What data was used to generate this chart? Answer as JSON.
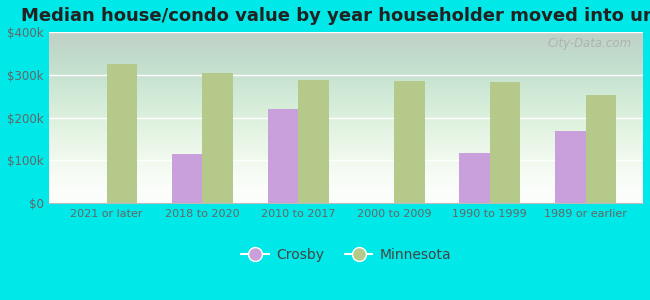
{
  "title": "Median house/condo value by year householder moved into unit",
  "categories": [
    "2021 or later",
    "2018 to 2020",
    "2010 to 2017",
    "2000 to 2009",
    "1990 to 1999",
    "1989 or earlier"
  ],
  "crosby_values": [
    null,
    115000,
    220000,
    null,
    118000,
    168000
  ],
  "minnesota_values": [
    325000,
    305000,
    288000,
    286000,
    283000,
    253000
  ],
  "crosby_color": "#c9a0dc",
  "minnesota_color": "#b5c98a",
  "background_color": "#00e8e8",
  "plot_bg": "#e8f5e9",
  "ylim": [
    0,
    400000
  ],
  "yticks": [
    0,
    100000,
    200000,
    300000,
    400000
  ],
  "ytick_labels": [
    "$0",
    "$100k",
    "$200k",
    "$300k",
    "$400k"
  ],
  "bar_width": 0.32,
  "title_fontsize": 13,
  "watermark": "City-Data.com",
  "legend_labels": [
    "Crosby",
    "Minnesota"
  ]
}
